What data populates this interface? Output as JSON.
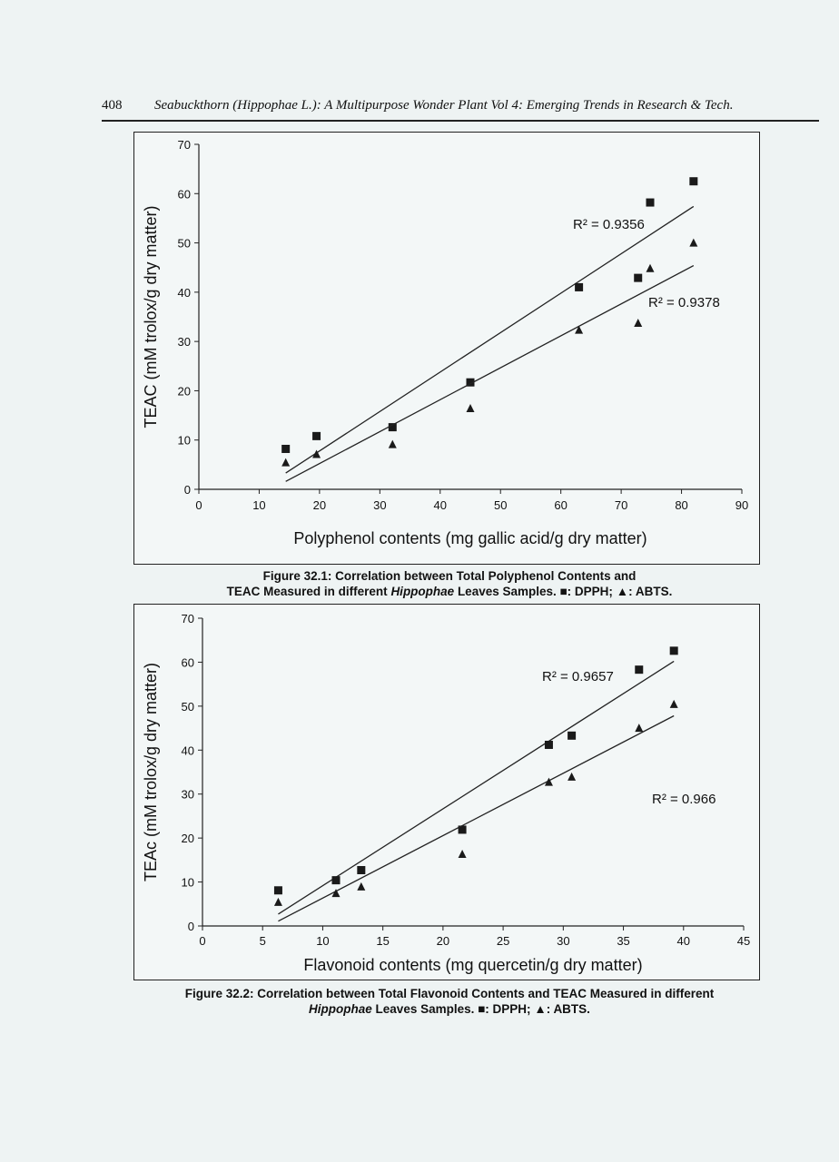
{
  "header": {
    "page_number": "408",
    "book_title": "Seabuckthorn (Hippophae L.): A Multipurpose Wonder Plant Vol 4: Emerging Trends in Research & Tech."
  },
  "legend": {
    "dpph": "DPPH;",
    "abts": "ABTS."
  },
  "figure1_caption": {
    "line1": "Figure 32.1: Correlation between Total Polyphenol Contents and",
    "line2a": "TEAC Measured in different ",
    "line2_italic": "Hippophae",
    "line2b": " Leaves Samples. "
  },
  "figure2_caption": {
    "line1": "Figure 32.2: Correlation between Total Flavonoid Contents and TEAC Measured in different",
    "line2_italic": "Hippophae",
    "line2b": " Leaves Samples. "
  },
  "chart_data": [
    {
      "type": "scatter",
      "xlabel": "Polyphenol contents (mg gallic acid/g dry matter)",
      "ylabel": "TEAC (mM trolox/g dry matter)",
      "xlim": [
        0,
        90
      ],
      "ylim": [
        0,
        70
      ],
      "xticks": [
        0,
        10,
        20,
        30,
        40,
        50,
        60,
        70,
        80,
        90
      ],
      "yticks": [
        0,
        10,
        20,
        30,
        40,
        50,
        60,
        70
      ],
      "grid": false,
      "series": [
        {
          "name": "DPPH",
          "marker": "square",
          "x": [
            14.4,
            19.5,
            32.1,
            45,
            63,
            72.8,
            74.8,
            82
          ],
          "y": [
            8.2,
            10.8,
            12.6,
            21.7,
            41,
            42.9,
            58.2,
            62.5
          ],
          "trendline": [
            [
              14.4,
              3.3
            ],
            [
              82,
              57.4
            ]
          ],
          "r2_label": "R² = 0.9356"
        },
        {
          "name": "ABTS",
          "marker": "triangle",
          "x": [
            14.4,
            19.5,
            32.1,
            45,
            63,
            72.8,
            74.8,
            82
          ],
          "y": [
            5.4,
            7.1,
            9.1,
            16.4,
            32.3,
            33.7,
            44.8,
            50
          ],
          "trendline": [
            [
              14.4,
              1.6
            ],
            [
              82,
              45.4
            ]
          ],
          "r2_label": "R² = 0.9378"
        }
      ]
    },
    {
      "type": "scatter",
      "xlabel": "Flavonoid contents (mg quercetin/g dry matter)",
      "ylabel": "TEAc (mM trolox/g dry matter)",
      "xlim": [
        0,
        45
      ],
      "ylim": [
        0,
        70
      ],
      "xticks": [
        0,
        5,
        10,
        15,
        20,
        25,
        30,
        35,
        40,
        45
      ],
      "yticks": [
        0,
        10,
        20,
        30,
        40,
        50,
        60,
        70
      ],
      "grid": false,
      "series": [
        {
          "name": "DPPH",
          "marker": "square",
          "x": [
            6.3,
            11.1,
            13.2,
            21.6,
            28.8,
            30.7,
            36.3,
            39.2
          ],
          "y": [
            8.1,
            10.4,
            12.7,
            21.9,
            41.2,
            43.3,
            58.3,
            62.6
          ],
          "trendline": [
            [
              6.3,
              2.7
            ],
            [
              39.2,
              60.2
            ]
          ],
          "r2_label": "R² = 0.9657"
        },
        {
          "name": "ABTS",
          "marker": "triangle",
          "x": [
            6.3,
            11.1,
            13.2,
            21.6,
            28.8,
            30.7,
            36.3,
            39.2
          ],
          "y": [
            5.4,
            7.4,
            8.9,
            16.3,
            32.7,
            33.9,
            45,
            50.4
          ],
          "trendline": [
            [
              6.3,
              1.1
            ],
            [
              39.2,
              47.8
            ]
          ],
          "r2_label": "R² = 0.966"
        }
      ]
    }
  ]
}
